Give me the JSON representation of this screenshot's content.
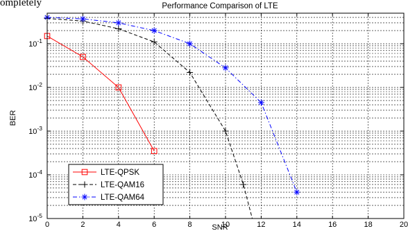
{
  "header_text": "ompletely ",
  "chart_data": {
    "type": "line",
    "title": "Performance Comparison of LTE",
    "xlabel": "SNR",
    "ylabel": "BER",
    "xlim": [
      0,
      20
    ],
    "ylim": [
      1e-05,
      0.5
    ],
    "yscale": "log",
    "grid": true,
    "legend_position": "bottom-left",
    "x_ticks": [
      "0",
      "2",
      "4",
      "6",
      "8",
      "10",
      "12",
      "14",
      "16",
      "18",
      "20"
    ],
    "y_ticks": [
      {
        "base": "10",
        "exp": "-1"
      },
      {
        "base": "10",
        "exp": "-2"
      },
      {
        "base": "10",
        "exp": "-3"
      },
      {
        "base": "10",
        "exp": "-4"
      },
      {
        "base": "10",
        "exp": "-5"
      }
    ],
    "series": [
      {
        "name": "LTE-QPSK",
        "color": "#ff0000",
        "marker": "square",
        "line_style": "solid",
        "x": [
          0,
          2,
          4,
          6
        ],
        "y": [
          0.15,
          0.05,
          0.01,
          0.00035
        ]
      },
      {
        "name": "LTE-QAM16",
        "color": "#000000",
        "marker": "plus",
        "line_style": "dashed",
        "x": [
          0,
          2,
          4,
          6,
          8,
          10,
          11,
          11.5
        ],
        "y": [
          0.38,
          0.33,
          0.22,
          0.11,
          0.022,
          0.001,
          6e-05,
          1e-05
        ]
      },
      {
        "name": "LTE-QAM64",
        "color": "#0000ff",
        "marker": "star",
        "line_style": "dashdot",
        "x": [
          0,
          2,
          4,
          6,
          8,
          10,
          12,
          14
        ],
        "y": [
          0.4,
          0.37,
          0.3,
          0.2,
          0.1,
          0.028,
          0.0045,
          4e-05
        ]
      }
    ]
  }
}
